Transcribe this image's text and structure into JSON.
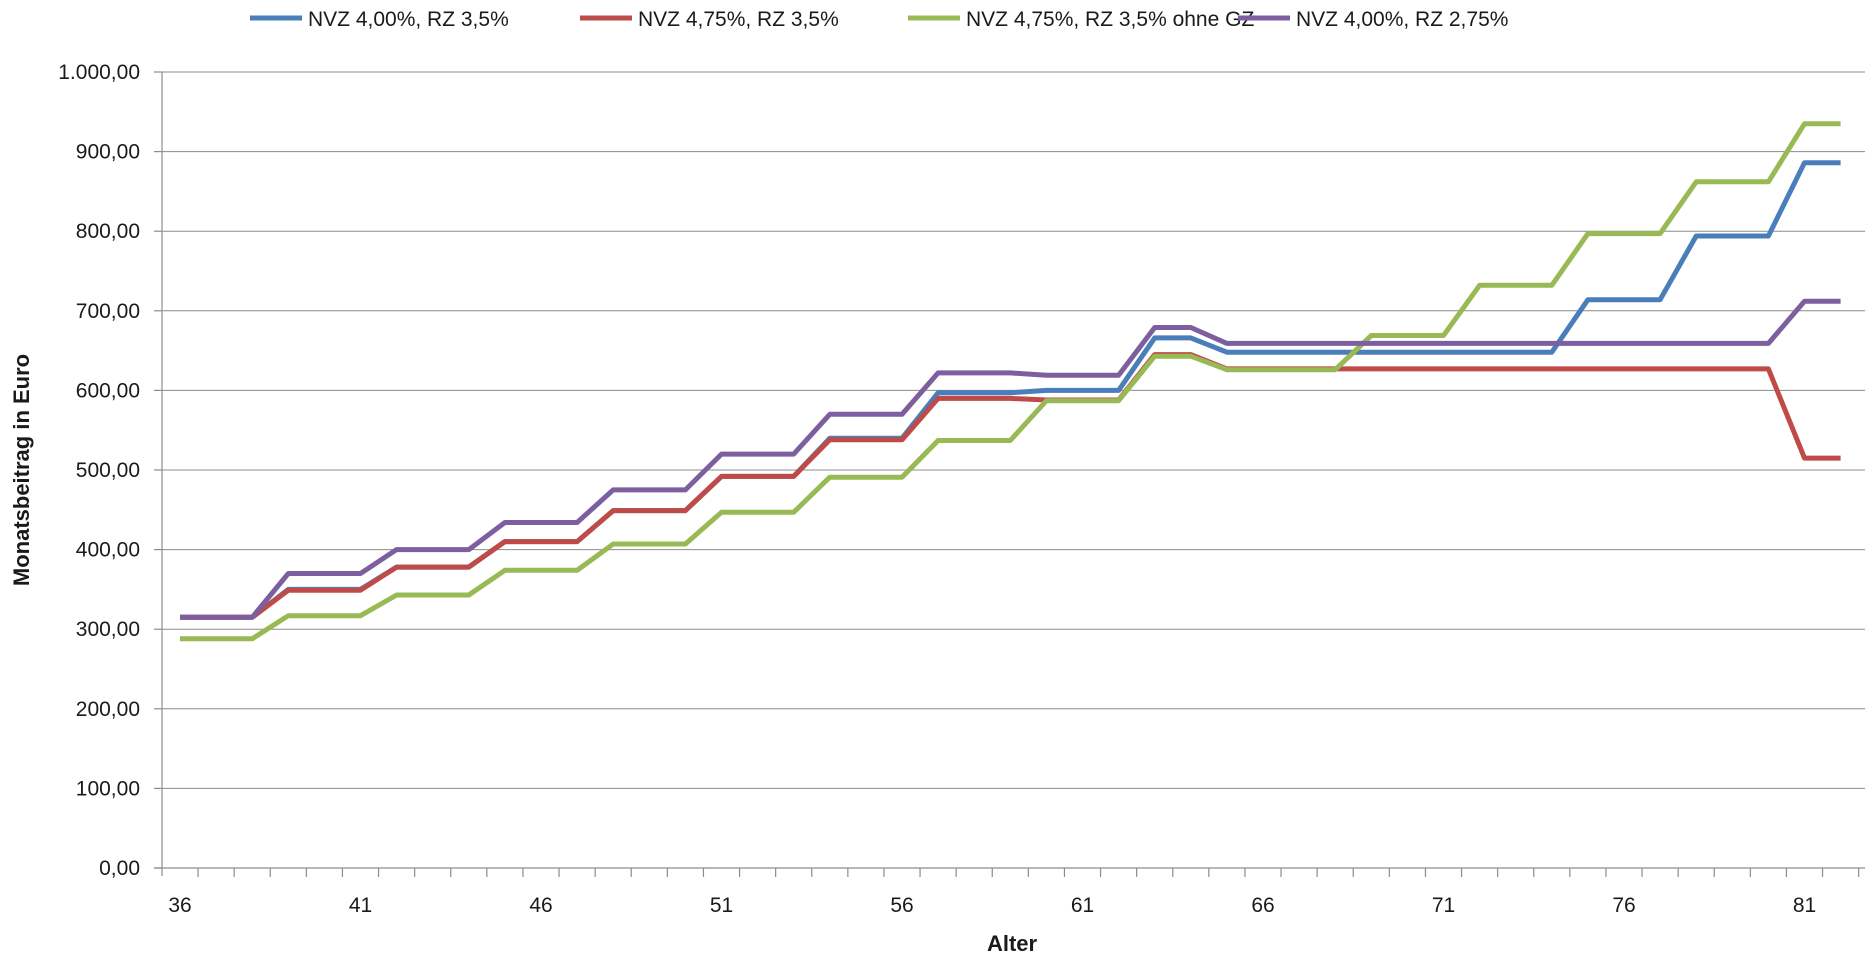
{
  "chart_data": {
    "type": "line",
    "xlabel": "Alter",
    "ylabel": "Monatsbeitrag in Euro",
    "xlim": [
      36,
      82
    ],
    "ylim": [
      0,
      1000
    ],
    "y_ticks": [
      0,
      100,
      200,
      300,
      400,
      500,
      600,
      700,
      800,
      900,
      1000
    ],
    "y_tick_labels": [
      "0,00",
      "100,00",
      "200,00",
      "300,00",
      "400,00",
      "500,00",
      "600,00",
      "700,00",
      "800,00",
      "900,00",
      "1.000,00"
    ],
    "x_tick_labels": [
      "36",
      "41",
      "46",
      "51",
      "56",
      "61",
      "66",
      "71",
      "76",
      "81"
    ],
    "x_tick_values": [
      36,
      41,
      46,
      51,
      56,
      61,
      66,
      71,
      76,
      81
    ],
    "grid": "horizontal",
    "legend_position": "top",
    "x": [
      36,
      37,
      38,
      39,
      40,
      41,
      42,
      43,
      44,
      45,
      46,
      47,
      48,
      49,
      50,
      51,
      52,
      53,
      54,
      55,
      56,
      57,
      58,
      59,
      60,
      61,
      62,
      63,
      64,
      65,
      66,
      67,
      68,
      69,
      70,
      71,
      72,
      73,
      74,
      75,
      76,
      77,
      78,
      79,
      80,
      81,
      82
    ],
    "series": [
      {
        "name": "NVZ 4,00%, RZ 3,5%",
        "color": "#4a7ebb",
        "values": [
          315,
          315,
          315,
          350,
          350,
          350,
          378,
          378,
          378,
          410,
          410,
          410,
          449,
          449,
          449,
          492,
          492,
          492,
          540,
          540,
          540,
          597,
          597,
          597,
          600,
          600,
          600,
          666,
          666,
          648,
          648,
          648,
          648,
          648,
          648,
          648,
          648,
          648,
          648,
          714,
          714,
          714,
          794,
          794,
          794,
          886,
          886
        ]
      },
      {
        "name": "NVZ 4,75%, RZ 3,5%",
        "color": "#be4b48",
        "values": [
          315,
          315,
          315,
          349,
          349,
          349,
          378,
          378,
          378,
          410,
          410,
          410,
          449,
          449,
          449,
          492,
          492,
          492,
          538,
          538,
          538,
          590,
          590,
          590,
          588,
          588,
          588,
          645,
          645,
          627,
          627,
          627,
          627,
          627,
          627,
          627,
          627,
          627,
          627,
          627,
          627,
          627,
          627,
          627,
          627,
          515,
          515
        ]
      },
      {
        "name": "NVZ 4,75%, RZ 3,5% ohne GZ",
        "color": "#98b954",
        "values": [
          288,
          288,
          288,
          317,
          317,
          317,
          343,
          343,
          343,
          374,
          374,
          374,
          407,
          407,
          407,
          447,
          447,
          447,
          491,
          491,
          491,
          537,
          537,
          537,
          587,
          587,
          587,
          643,
          643,
          626,
          626,
          626,
          626,
          669,
          669,
          669,
          732,
          732,
          732,
          797,
          797,
          797,
          862,
          862,
          862,
          935,
          935
        ]
      },
      {
        "name": "NVZ 4,00%, RZ 2,75%",
        "color": "#7d5fa0",
        "values": [
          315,
          315,
          315,
          370,
          370,
          370,
          400,
          400,
          400,
          434,
          434,
          434,
          475,
          475,
          475,
          520,
          520,
          520,
          570,
          570,
          570,
          622,
          622,
          622,
          619,
          619,
          619,
          679,
          679,
          659,
          659,
          659,
          659,
          659,
          659,
          659,
          659,
          659,
          659,
          659,
          659,
          659,
          659,
          659,
          659,
          712,
          712
        ]
      }
    ]
  }
}
